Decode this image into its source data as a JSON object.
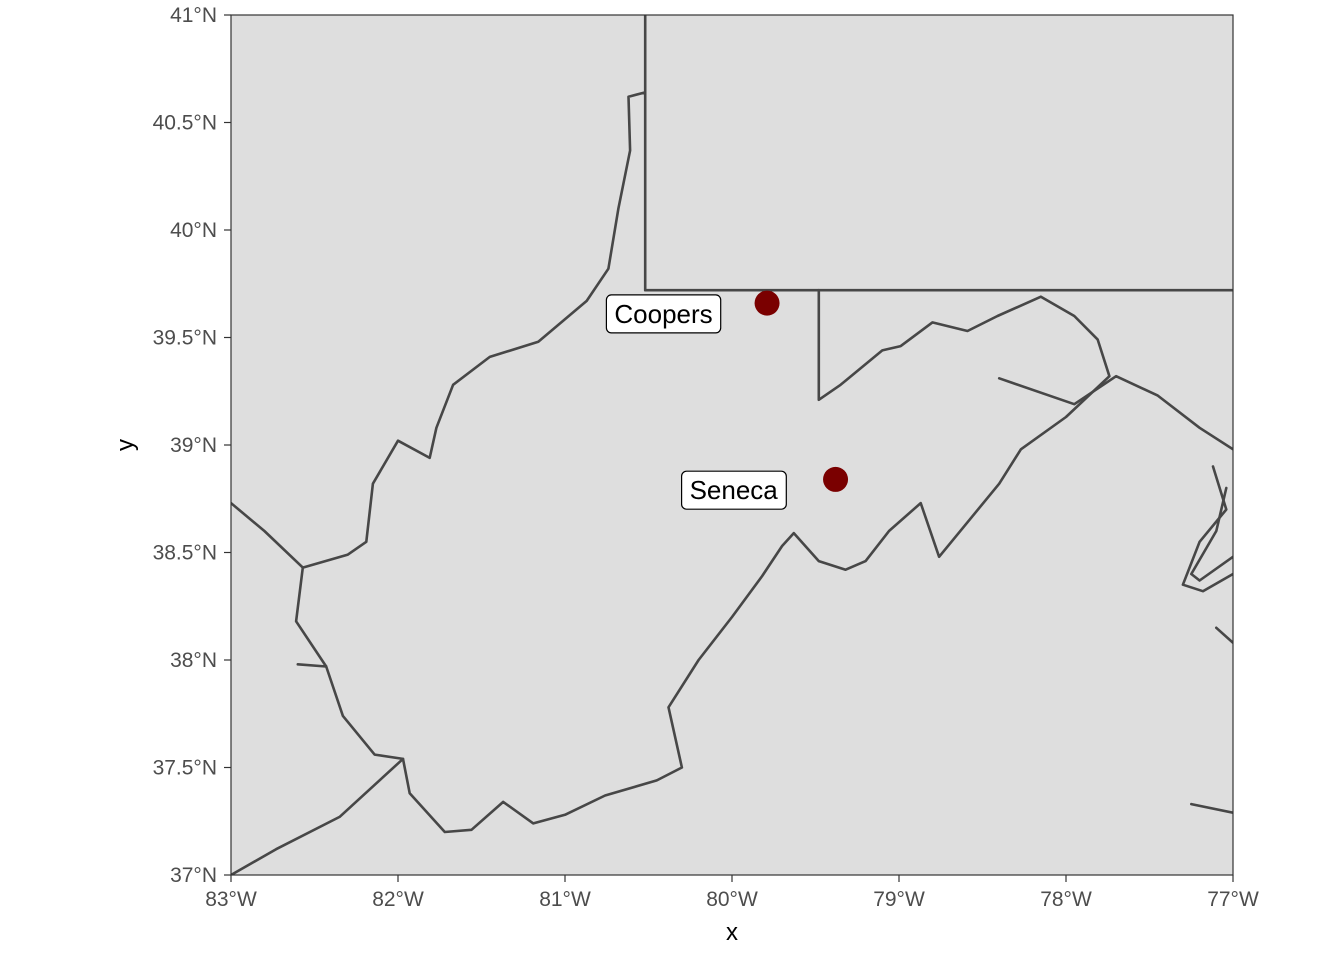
{
  "chart_data": {
    "type": "map",
    "title": "",
    "xlabel": "x",
    "ylabel": "y",
    "xlim": [
      -83,
      -77
    ],
    "ylim": [
      37,
      41
    ],
    "grid": false,
    "x_ticks": [
      {
        "value": -83,
        "label": "83°W"
      },
      {
        "value": -82,
        "label": "82°W"
      },
      {
        "value": -81,
        "label": "81°W"
      },
      {
        "value": -80,
        "label": "80°W"
      },
      {
        "value": -79,
        "label": "79°W"
      },
      {
        "value": -78,
        "label": "78°W"
      },
      {
        "value": -77,
        "label": "77°W"
      }
    ],
    "y_ticks": [
      {
        "value": 37,
        "label": "37°N"
      },
      {
        "value": 37.5,
        "label": "37.5°N"
      },
      {
        "value": 38,
        "label": "38°N"
      },
      {
        "value": 38.5,
        "label": "38.5°N"
      },
      {
        "value": 39,
        "label": "39°N"
      },
      {
        "value": 39.5,
        "label": "39.5°N"
      },
      {
        "value": 40,
        "label": "40°N"
      },
      {
        "value": 40.5,
        "label": "40.5°N"
      },
      {
        "value": 41,
        "label": "41°N"
      }
    ],
    "points": [
      {
        "name": "Coopers",
        "lon": -79.79,
        "lat": 39.66,
        "label_lon": -80.41,
        "label_lat": 39.61
      },
      {
        "name": "Seneca",
        "lon": -79.38,
        "lat": 38.84,
        "label_lon": -79.99,
        "label_lat": 38.79
      }
    ],
    "colors": {
      "panel_background": "#dedede",
      "border_line": "#474747",
      "point": "#7a0000",
      "label_fill": "#ffffff"
    },
    "boundaries": [
      {
        "name": "wv-border",
        "coords": [
          [
            -80.52,
            40.64
          ],
          [
            -80.52,
            39.72
          ],
          [
            -79.48,
            39.72
          ],
          [
            -79.48,
            39.21
          ],
          [
            -79.35,
            39.28
          ],
          [
            -79.1,
            39.44
          ],
          [
            -78.99,
            39.46
          ],
          [
            -78.8,
            39.57
          ],
          [
            -78.59,
            39.53
          ],
          [
            -78.41,
            39.6
          ],
          [
            -78.15,
            39.69
          ],
          [
            -77.95,
            39.6
          ],
          [
            -77.81,
            39.49
          ],
          [
            -77.74,
            39.32
          ],
          [
            -78.0,
            39.13
          ],
          [
            -78.27,
            38.98
          ],
          [
            -78.4,
            38.82
          ],
          [
            -78.58,
            38.65
          ],
          [
            -78.76,
            38.48
          ],
          [
            -78.87,
            38.73
          ],
          [
            -79.06,
            38.6
          ],
          [
            -79.2,
            38.46
          ],
          [
            -79.32,
            38.42
          ],
          [
            -79.48,
            38.46
          ],
          [
            -79.63,
            38.59
          ],
          [
            -79.7,
            38.53
          ],
          [
            -79.82,
            38.39
          ],
          [
            -80.0,
            38.2
          ],
          [
            -80.2,
            38.0
          ],
          [
            -80.38,
            37.78
          ],
          [
            -80.3,
            37.5
          ],
          [
            -80.45,
            37.44
          ],
          [
            -80.76,
            37.37
          ],
          [
            -81.0,
            37.28
          ],
          [
            -81.19,
            37.24
          ],
          [
            -81.37,
            37.34
          ],
          [
            -81.56,
            37.21
          ],
          [
            -81.72,
            37.2
          ],
          [
            -81.93,
            37.38
          ],
          [
            -81.97,
            37.54
          ],
          [
            -82.14,
            37.56
          ],
          [
            -82.33,
            37.74
          ],
          [
            -82.43,
            37.97
          ],
          [
            -82.61,
            38.18
          ],
          [
            -82.57,
            38.43
          ],
          [
            -82.3,
            38.49
          ],
          [
            -82.19,
            38.55
          ],
          [
            -82.15,
            38.82
          ],
          [
            -82.0,
            39.02
          ],
          [
            -81.81,
            38.94
          ],
          [
            -81.77,
            39.08
          ],
          [
            -81.67,
            39.28
          ],
          [
            -81.45,
            39.41
          ],
          [
            -81.16,
            39.48
          ],
          [
            -80.87,
            39.67
          ],
          [
            -80.74,
            39.82
          ],
          [
            -80.68,
            40.1
          ],
          [
            -80.61,
            40.37
          ],
          [
            -80.62,
            40.62
          ],
          [
            -80.52,
            40.64
          ]
        ]
      },
      {
        "name": "ohio-kentucky-border",
        "coords": [
          [
            -80.52,
            41.0
          ],
          [
            -80.52,
            40.64
          ]
        ]
      },
      {
        "name": "pa-line-east",
        "coords": [
          [
            -79.48,
            39.72
          ],
          [
            -78.6,
            39.72
          ],
          [
            -77.0,
            39.72
          ]
        ]
      },
      {
        "name": "kentucky-virginia-line",
        "coords": [
          [
            -82.43,
            37.97
          ],
          [
            -82.6,
            37.98
          ]
        ]
      },
      {
        "name": "ky-va-border-sw",
        "coords": [
          [
            -81.97,
            37.54
          ],
          [
            -82.35,
            37.27
          ],
          [
            -82.73,
            37.12
          ],
          [
            -83.0,
            37.0
          ]
        ]
      },
      {
        "name": "ohio-indiana-west",
        "coords": [
          [
            -82.57,
            38.43
          ],
          [
            -82.8,
            38.6
          ],
          [
            -83.0,
            38.73
          ]
        ]
      },
      {
        "name": "potomac-east-branch",
        "coords": [
          [
            -78.4,
            39.31
          ],
          [
            -77.95,
            39.19
          ],
          [
            -77.7,
            39.32
          ],
          [
            -77.45,
            39.23
          ],
          [
            -77.2,
            39.08
          ],
          [
            -77.0,
            38.98
          ]
        ]
      },
      {
        "name": "potomac-river-a",
        "coords": [
          [
            -77.12,
            38.9
          ],
          [
            -77.04,
            38.7
          ],
          [
            -77.2,
            38.55
          ],
          [
            -77.3,
            38.35
          ],
          [
            -77.18,
            38.32
          ],
          [
            -77.0,
            38.4
          ]
        ]
      },
      {
        "name": "potomac-river-b",
        "coords": [
          [
            -77.04,
            38.8
          ],
          [
            -77.1,
            38.6
          ],
          [
            -77.25,
            38.4
          ],
          [
            -77.2,
            38.37
          ],
          [
            -77.0,
            38.48
          ]
        ]
      },
      {
        "name": "chesapeake-shore",
        "coords": [
          [
            -77.1,
            38.15
          ],
          [
            -77.0,
            38.08
          ]
        ]
      },
      {
        "name": "lower-shore",
        "coords": [
          [
            -77.25,
            37.33
          ],
          [
            -77.0,
            37.29
          ]
        ]
      }
    ]
  }
}
